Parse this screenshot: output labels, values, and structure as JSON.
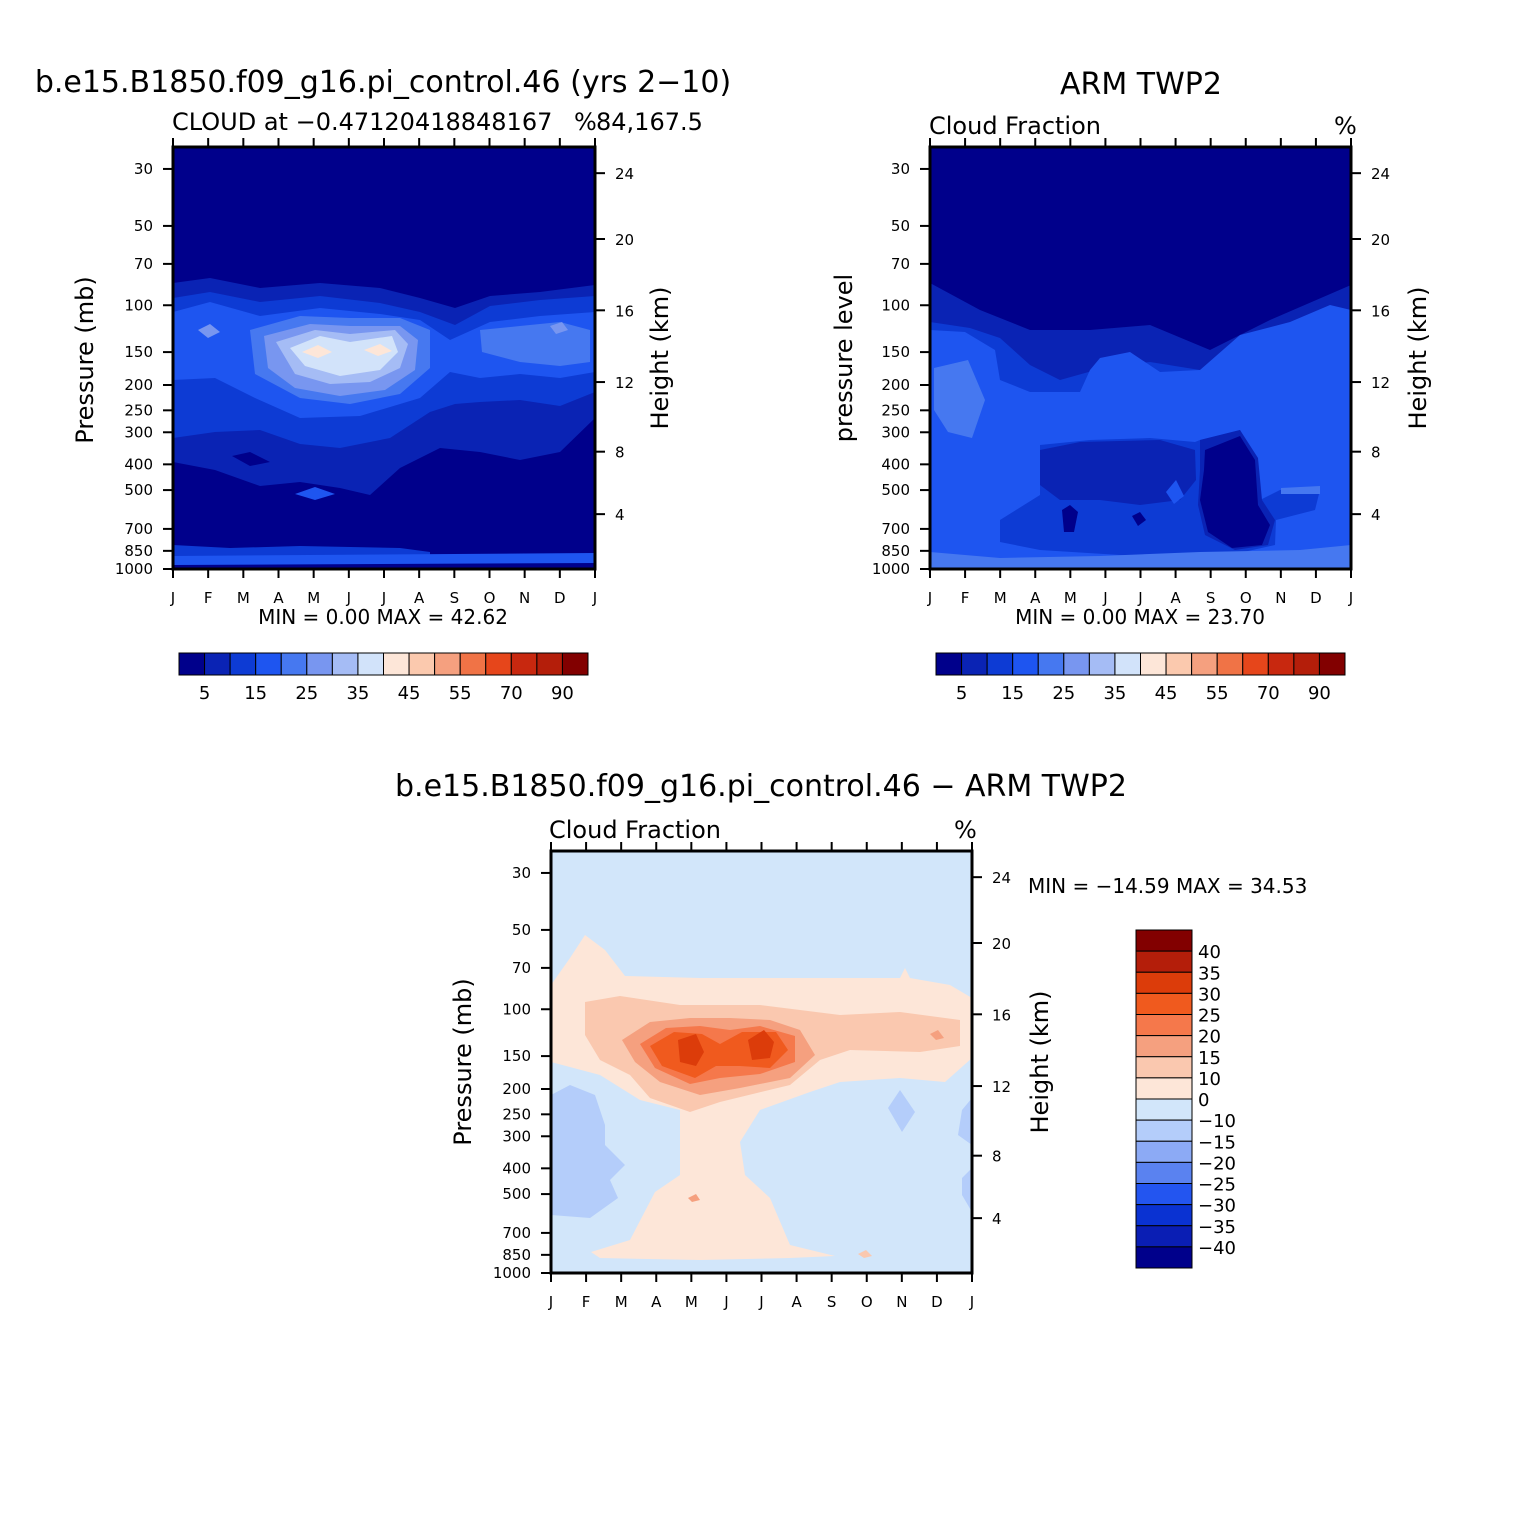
{
  "chart_data": [
    {
      "type": "heatmap",
      "title": "b.e15.B1850.f09_g16.pi_control.46 (yrs 2−10)",
      "subtitle_left": "CLOUD at −0.47120418848167",
      "subtitle_right": "84,167.5",
      "units": "%",
      "ylabel": "Pressure (mb)",
      "ylabel_right": "Height (km)",
      "x_ticks": [
        "J",
        "F",
        "M",
        "A",
        "M",
        "J",
        "J",
        "A",
        "S",
        "O",
        "N",
        "D",
        "J"
      ],
      "pressure_ticks": [
        "30",
        "50",
        "70",
        "100",
        "150",
        "200",
        "250",
        "300",
        "400",
        "500",
        "700",
        "850",
        "1000"
      ],
      "height_ticks": [
        "24",
        "20",
        "16",
        "12",
        "8",
        "4"
      ],
      "minmax": "MIN =    0.00 MAX =   42.62",
      "min": 0.0,
      "max": 42.62,
      "cb_labels": [
        "5",
        "15",
        "25",
        "35",
        "45",
        "55",
        "70",
        "90"
      ]
    },
    {
      "type": "heatmap",
      "title": "ARM TWP2",
      "subtitle_left": "Cloud Fraction",
      "units": "%",
      "ylabel": "pressure level",
      "ylabel_right": "Height (km)",
      "x_ticks": [
        "J",
        "F",
        "M",
        "A",
        "M",
        "J",
        "J",
        "A",
        "S",
        "O",
        "N",
        "D",
        "J"
      ],
      "pressure_ticks": [
        "30",
        "50",
        "70",
        "100",
        "150",
        "200",
        "250",
        "300",
        "400",
        "500",
        "700",
        "850",
        "1000"
      ],
      "height_ticks": [
        "24",
        "20",
        "16",
        "12",
        "8",
        "4"
      ],
      "minmax": "MIN =    0.00 MAX =   23.70",
      "min": 0.0,
      "max": 23.7,
      "cb_labels": [
        "5",
        "15",
        "25",
        "35",
        "45",
        "55",
        "70",
        "90"
      ]
    },
    {
      "type": "heatmap",
      "title": "b.e15.B1850.f09_g16.pi_control.46 − ARM TWP2",
      "subtitle_left": "Cloud Fraction",
      "units": "%",
      "ylabel": "Pressure (mb)",
      "ylabel_right": "Height (km)",
      "x_ticks": [
        "J",
        "F",
        "M",
        "A",
        "M",
        "J",
        "J",
        "A",
        "S",
        "O",
        "N",
        "D",
        "J"
      ],
      "pressure_ticks": [
        "30",
        "50",
        "70",
        "100",
        "150",
        "200",
        "250",
        "300",
        "400",
        "500",
        "700",
        "850",
        "1000"
      ],
      "height_ticks": [
        "24",
        "20",
        "16",
        "12",
        "8",
        "4"
      ],
      "minmax": "MIN = −14.59 MAX =   34.53",
      "min": -14.59,
      "max": 34.53,
      "cb_labels": [
        "40",
        "35",
        "30",
        "25",
        "20",
        "15",
        "10",
        "0",
        "−10",
        "−15",
        "−20",
        "−25",
        "−30",
        "−35",
        "−40"
      ]
    }
  ],
  "colors": {
    "seq_scale": [
      "#00008b",
      "#0a23b4",
      "#0d3bd4",
      "#1e55f0",
      "#4678f0",
      "#7896f0",
      "#a5bcf5",
      "#d2e3fa",
      "#fde6d8",
      "#fbc9ae",
      "#f5a07f",
      "#f07346",
      "#e6461b",
      "#c8280f",
      "#b41e0a",
      "#820000"
    ],
    "diff_scale": [
      "#820000",
      "#b41e0a",
      "#dc3c0a",
      "#f05a1e",
      "#f5784b",
      "#f5a07f",
      "#fac8af",
      "#fde6d8",
      "#d2e6fa",
      "#b4cdfa",
      "#8caaf5",
      "#5a82f0",
      "#2355f0",
      "#0a32d2",
      "#0a1eb4",
      "#00008b"
    ]
  }
}
